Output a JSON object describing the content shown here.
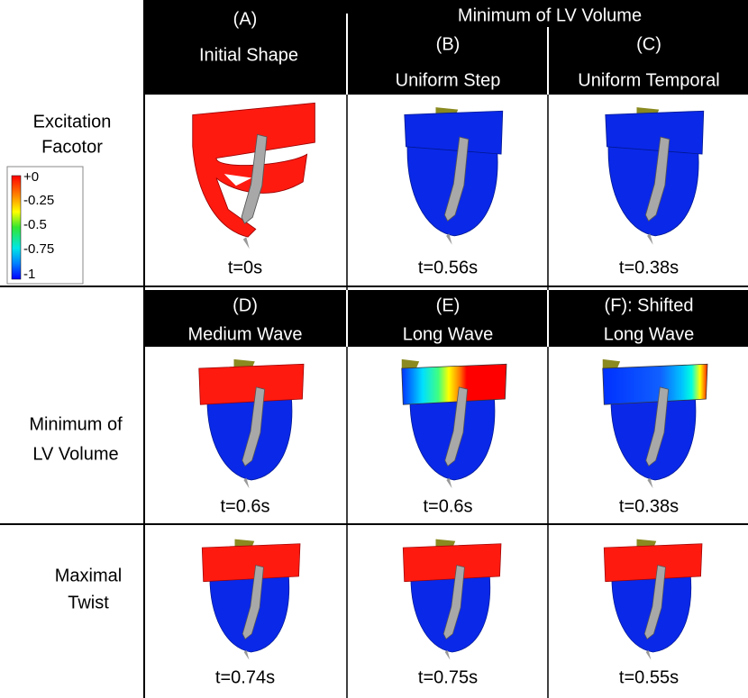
{
  "top_header": {
    "title": "Minimum of LV Volume",
    "columns": [
      {
        "id": "(A)",
        "title": "Initial Shape"
      },
      {
        "id": "(B)",
        "title": "Uniform Step"
      },
      {
        "id": "(C)",
        "title": "Uniform Temporal"
      }
    ]
  },
  "legend": {
    "title": [
      "Excitation",
      "Facotor"
    ],
    "ticks": [
      "+0",
      "-0.25",
      "-0.5",
      "-0.75",
      "-1"
    ]
  },
  "mid_header": {
    "columns": [
      {
        "id": "(D)",
        "title": "Medium Wave"
      },
      {
        "id": "(E)",
        "title": "Long Wave"
      },
      {
        "id": "(F): Shifted",
        "title": "Long Wave"
      }
    ]
  },
  "rows": [
    {
      "times": [
        "t=0s",
        "t=0.56s",
        "t=0.38s"
      ]
    },
    {
      "label": [
        "Minimum of",
        "LV Volume"
      ],
      "times": [
        "t=0.6s",
        "t=0.6s",
        "t=0.38s"
      ]
    },
    {
      "label": [
        "Maximal",
        "Twist"
      ],
      "times": [
        "t=0.74s",
        "t=0.75s",
        "t=0.55s"
      ]
    }
  ]
}
